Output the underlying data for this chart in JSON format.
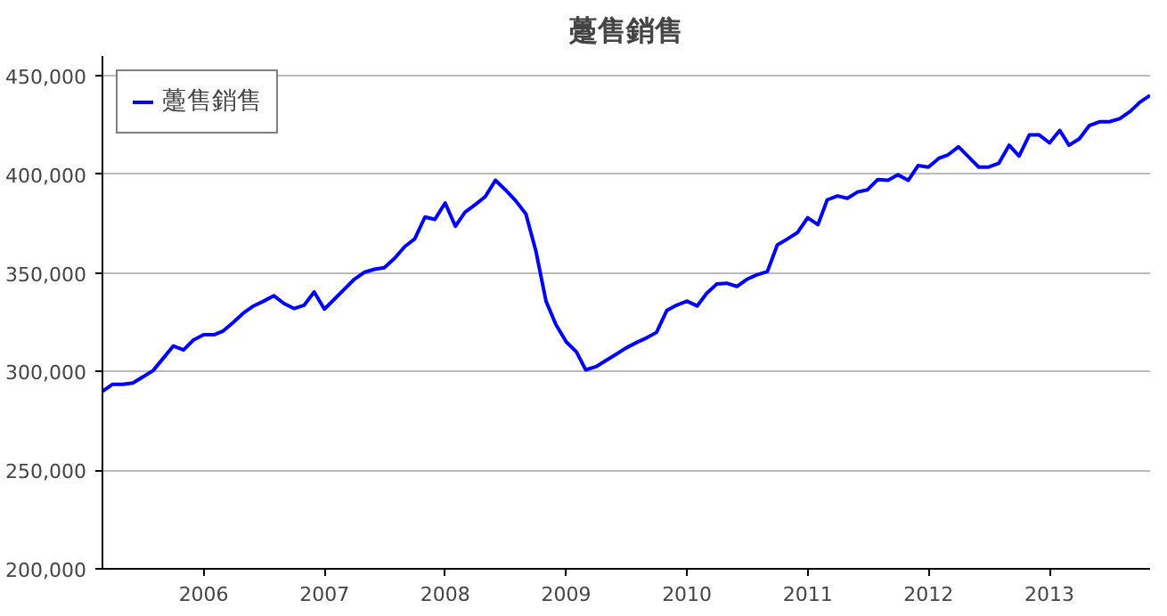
{
  "chart_data": {
    "type": "line",
    "title": "躉售銷售",
    "x": [
      "2005-03",
      "2005-04",
      "2005-05",
      "2005-06",
      "2005-07",
      "2005-08",
      "2005-09",
      "2005-10",
      "2005-11",
      "2005-12",
      "2006-01",
      "2006-02",
      "2006-03",
      "2006-04",
      "2006-05",
      "2006-06",
      "2006-07",
      "2006-08",
      "2006-09",
      "2006-10",
      "2006-11",
      "2006-12",
      "2007-01",
      "2007-02",
      "2007-03",
      "2007-04",
      "2007-05",
      "2007-06",
      "2007-07",
      "2007-08",
      "2007-09",
      "2007-10",
      "2007-11",
      "2007-12",
      "2008-01",
      "2008-02",
      "2008-03",
      "2008-04",
      "2008-05",
      "2008-06",
      "2008-07",
      "2008-08",
      "2008-09",
      "2008-10",
      "2008-11",
      "2008-12",
      "2009-01",
      "2009-02",
      "2009-03",
      "2009-04",
      "2009-05",
      "2009-06",
      "2009-07",
      "2009-08",
      "2009-09",
      "2009-10",
      "2009-11",
      "2009-12",
      "2010-01",
      "2010-02",
      "2010-03",
      "2010-04",
      "2010-05",
      "2010-06",
      "2010-07",
      "2010-08",
      "2010-09",
      "2010-10",
      "2010-11",
      "2010-12",
      "2011-01",
      "2011-02",
      "2011-03",
      "2011-04",
      "2011-05",
      "2011-06",
      "2011-07",
      "2011-08",
      "2011-09",
      "2011-10",
      "2011-11",
      "2011-12",
      "2012-01",
      "2012-02",
      "2012-03",
      "2012-04",
      "2012-05",
      "2012-06",
      "2012-07",
      "2012-08",
      "2012-09",
      "2012-10",
      "2012-11",
      "2012-12",
      "2013-01",
      "2013-02",
      "2013-03",
      "2013-04",
      "2013-05",
      "2013-06",
      "2013-07",
      "2013-08",
      "2013-09",
      "2013-10",
      "2013-11"
    ],
    "series": [
      {
        "name": "躉售銷售",
        "color": "#0000ff",
        "values": [
          290000,
          293600,
          293600,
          294200,
          297300,
          300500,
          306800,
          313000,
          311000,
          316000,
          318700,
          318700,
          320600,
          325000,
          329700,
          333300,
          335700,
          338500,
          334500,
          332000,
          333700,
          340400,
          331700,
          336900,
          341600,
          346800,
          350300,
          351900,
          352700,
          357400,
          363400,
          367300,
          378400,
          377200,
          385500,
          373700,
          380800,
          384700,
          388700,
          397000,
          392200,
          386700,
          380000,
          361400,
          335700,
          323800,
          315100,
          310000,
          300900,
          302500,
          305600,
          308800,
          312000,
          314700,
          317100,
          319900,
          331000,
          333700,
          335700,
          333300,
          339600,
          344400,
          344800,
          343200,
          346800,
          349100,
          350700,
          364200,
          367300,
          370500,
          378000,
          374500,
          387100,
          389100,
          387900,
          391100,
          392200,
          397400,
          397000,
          399800,
          397000,
          404500,
          403700,
          408100,
          410000,
          414000,
          408900,
          403700,
          403700,
          405700,
          414800,
          409300,
          420000,
          420000,
          416000,
          422300,
          414800,
          418000,
          424700,
          426700,
          426700,
          428200,
          431800,
          436600,
          440100
        ]
      }
    ],
    "xlim": [
      "2005-03",
      "2013-11"
    ],
    "xticks": [
      "2006",
      "2007",
      "2008",
      "2009",
      "2010",
      "2011",
      "2012",
      "2013"
    ],
    "ylim": [
      200000,
      460000
    ],
    "yticks": [
      {
        "value": 200000,
        "label": "200,000"
      },
      {
        "value": 250000,
        "label": "250,000"
      },
      {
        "value": 300000,
        "label": "300,000"
      },
      {
        "value": 350000,
        "label": "350,000"
      },
      {
        "value": 400000,
        "label": "400,000"
      },
      {
        "value": 450000,
        "label": "450,000"
      }
    ],
    "grid": "y",
    "legend": "top left",
    "marker": "none",
    "line_style": "solid"
  }
}
